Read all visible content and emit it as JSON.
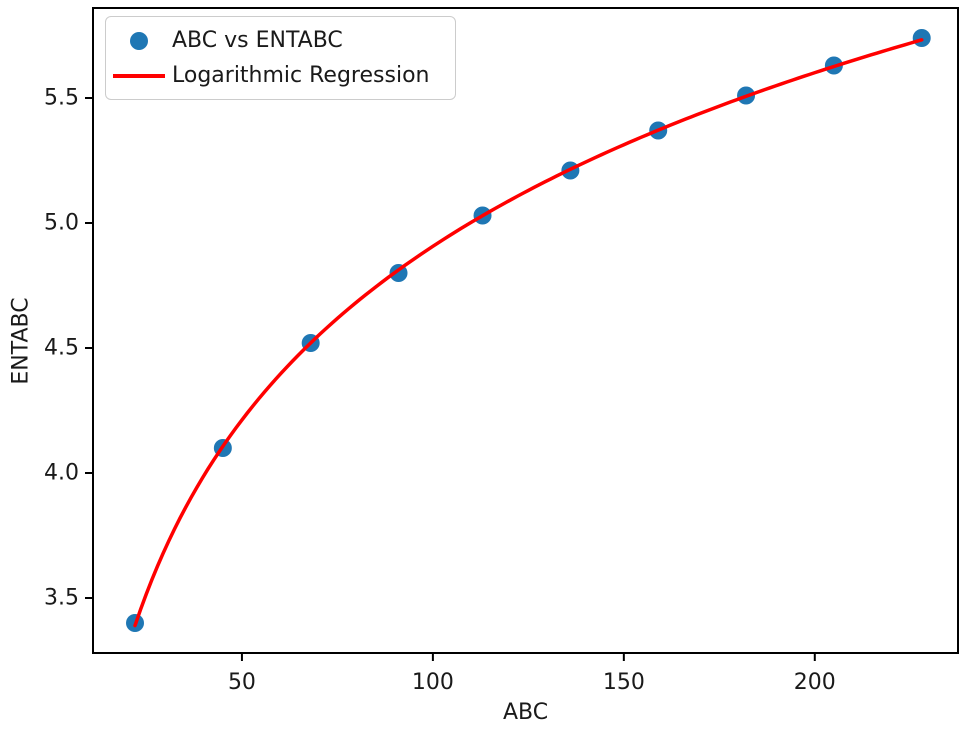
{
  "figure": {
    "background": "#ffffff"
  },
  "axes_style": {
    "frame_color": "#000000",
    "text_color": "#1a1a1a",
    "legend_border_color": "#cccccc",
    "grid": false
  },
  "chart_data": {
    "type": "scatter",
    "title": "",
    "xlabel": "ABC",
    "ylabel": "ENTABC",
    "xlim": [
      11,
      237.5
    ],
    "ylim": [
      3.28,
      5.86
    ],
    "xticks": [
      50,
      100,
      150,
      200
    ],
    "yticks": [
      3.5,
      4.0,
      4.5,
      5.0,
      5.5
    ],
    "grid": false,
    "legend_position": "upper-left",
    "series": [
      {
        "name": "ABC vs ENTABC",
        "type": "scatter",
        "marker": "dot",
        "color": "#1f77b4",
        "x": [
          22,
          45,
          68,
          91,
          113,
          136,
          159,
          182,
          205,
          228
        ],
        "y": [
          3.4,
          4.1,
          4.52,
          4.8,
          5.03,
          5.21,
          5.37,
          5.51,
          5.63,
          5.74
        ]
      },
      {
        "name": "Logarithmic Regression",
        "type": "line",
        "fit": "logarithmic",
        "color": "#ff0000"
      }
    ]
  }
}
